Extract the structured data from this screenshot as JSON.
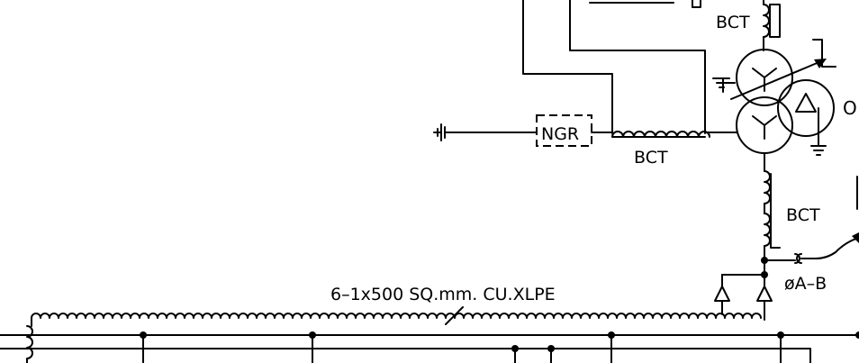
{
  "labels": {
    "bct_top": "BCT",
    "bct_neutral": "BCT",
    "bct_lower": "BCT",
    "ngr": "NGR",
    "cable": "6–1x500 SQ.mm. CU.XLPE",
    "phase": "øA–B",
    "cut_edge": "O"
  },
  "icons": [
    "ground-icon",
    "transformer-icon",
    "current-transformer-icon",
    "surge-arrester-icon",
    "resistor-icon"
  ]
}
